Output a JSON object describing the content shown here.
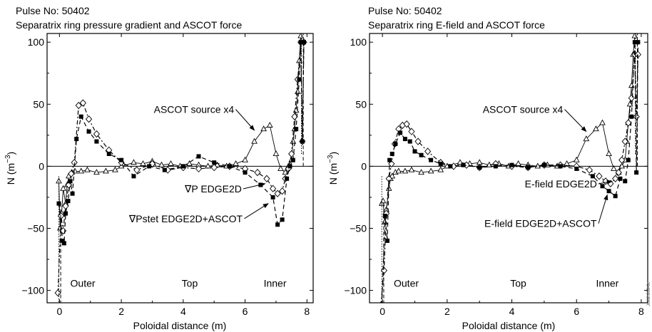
{
  "watermark": "JG02.209-6c",
  "chart_data": [
    {
      "type": "line",
      "pulse": "Pulse No: 50402",
      "title": "Separatrix ring pressure gradient and ASCOT force",
      "xlabel": "Poloidal distance (m)",
      "ylabel": "N (m",
      "ylabel_sup": "−3",
      "ylabel_close": ")",
      "xlim": [
        -0.4,
        8.2
      ],
      "ylim": [
        -110,
        107
      ],
      "xticks": [
        0,
        2,
        4,
        6,
        8
      ],
      "yticks": [
        -100,
        -50,
        0,
        50,
        100
      ],
      "ytick_labels": [
        "−100",
        "−50",
        "0",
        "50",
        "100"
      ],
      "region_labels": [
        {
          "text": "Outer",
          "x": 0.35,
          "y": -97
        },
        {
          "text": "Top",
          "x": 3.95,
          "y": -97
        },
        {
          "text": "Inner",
          "x": 6.6,
          "y": -97
        }
      ],
      "annotations": [
        {
          "text": "ASCOT source x4",
          "tx": 3.05,
          "ty": 43,
          "ax": 6.3,
          "ay": 29
        },
        {
          "text": "∇P EDGE2D",
          "tx": 4.05,
          "ty": -21,
          "ax": 6.65,
          "ay": -14
        },
        {
          "text": "∇Pstet EDGE2D+ASCOT",
          "tx": 2.25,
          "ty": -45,
          "ax": 6.75,
          "ay": -30
        }
      ],
      "series": [
        {
          "marker": "triangle",
          "dash": "",
          "color": "#000000",
          "x": [
            -0.02,
            0.02,
            0.07,
            0.12,
            0.2,
            0.25,
            0.3,
            0.4,
            0.5,
            0.7,
            0.9,
            1.2,
            1.5,
            1.8,
            2.0,
            2.4,
            2.7,
            3.0,
            3.3,
            3.6,
            3.9,
            4.2,
            4.5,
            4.8,
            5.1,
            5.4,
            5.7,
            6.0,
            6.3,
            6.6,
            6.8,
            7.0,
            7.15,
            7.3,
            7.4,
            7.5,
            7.55,
            7.6,
            7.65,
            7.7,
            7.75,
            7.8,
            7.85
          ],
          "y": [
            -12,
            -50,
            -38,
            -18,
            -30,
            -15,
            -8,
            -5,
            -4,
            -4,
            -3,
            -5,
            -4,
            -3,
            0,
            3,
            2,
            4,
            1,
            2,
            0,
            2,
            1,
            0,
            1,
            0,
            2,
            5,
            20,
            30,
            33,
            10,
            -2,
            -5,
            0,
            5,
            20,
            30,
            45,
            60,
            85,
            105,
            120
          ]
        },
        {
          "marker": "diamond",
          "dash": "6 3 2 3",
          "color": "#000000",
          "x": [
            -0.05,
            0.05,
            0.12,
            0.2,
            0.3,
            0.38,
            0.48,
            0.62,
            0.76,
            0.95,
            1.2,
            1.6,
            2.0,
            2.5,
            3.0,
            3.5,
            4.0,
            4.5,
            5.0,
            5.5,
            6.0,
            6.4,
            6.7,
            6.9,
            7.05,
            7.2,
            7.3,
            7.4,
            7.5,
            7.6,
            7.7,
            7.8,
            7.85,
            7.9
          ],
          "y": [
            -102,
            -40,
            -52,
            -32,
            -15,
            -6,
            3,
            49,
            51,
            38,
            26,
            13,
            3,
            -3,
            2,
            -3,
            -1,
            -2,
            -1,
            0,
            -2,
            -5,
            -10,
            -18,
            -22,
            -20,
            -10,
            -2,
            10,
            40,
            70,
            100,
            20,
            100
          ],
          "clip_top": true
        },
        {
          "marker": "square",
          "dash": "6 4",
          "color": "#000000",
          "x": [
            -0.02,
            0.1,
            0.15,
            0.2,
            0.28,
            0.35,
            0.42,
            0.55,
            0.7,
            0.95,
            1.2,
            1.6,
            2.0,
            2.4,
            2.9,
            3.4,
            4.0,
            4.5,
            5.0,
            5.5,
            6.0,
            6.5,
            6.9,
            7.05,
            7.2,
            7.35,
            7.45,
            7.55,
            7.65,
            7.75,
            7.8,
            7.85,
            7.9
          ],
          "y": [
            -30,
            -60,
            -62,
            -38,
            -28,
            -12,
            -22,
            22,
            40,
            28,
            20,
            10,
            5,
            -8,
            0,
            -3,
            0,
            8,
            3,
            0,
            -5,
            -15,
            -25,
            -47,
            -43,
            -10,
            0,
            5,
            30,
            70,
            100,
            20,
            100
          ],
          "clip_top": true
        }
      ]
    },
    {
      "type": "line",
      "pulse": "Pulse No: 50402",
      "title": "Separatrix ring E-field and ASCOT force",
      "xlabel": "Poloidal distance (m)",
      "ylabel": "N (m",
      "ylabel_sup": "−3",
      "ylabel_close": ")",
      "xlim": [
        -0.4,
        8.2
      ],
      "ylim": [
        -110,
        107
      ],
      "xticks": [
        0,
        2,
        4,
        6,
        8
      ],
      "yticks": [
        -100,
        -50,
        0,
        50,
        100
      ],
      "ytick_labels": [
        "−100",
        "−50",
        "0",
        "50",
        "100"
      ],
      "region_labels": [
        {
          "text": "Outer",
          "x": 0.35,
          "y": -97
        },
        {
          "text": "Top",
          "x": 3.95,
          "y": -97
        },
        {
          "text": "Inner",
          "x": 6.6,
          "y": -97
        }
      ],
      "annotations": [
        {
          "text": "ASCOT source x4",
          "tx": 3.1,
          "ty": 43,
          "ax": 6.3,
          "ay": 28
        },
        {
          "text": "E-field EDGE2D",
          "tx": 4.4,
          "ty": -17,
          "ax": 7.1,
          "ay": -12
        },
        {
          "text": "E-field EDGE2D+ASCOT",
          "tx": 3.15,
          "ty": -49,
          "ax": 6.95,
          "ay": -23
        }
      ],
      "series": [
        {
          "marker": "triangle",
          "dash": "",
          "color": "#000000",
          "x": [
            -0.02,
            0.02,
            0.07,
            0.12,
            0.2,
            0.25,
            0.3,
            0.4,
            0.5,
            0.7,
            0.9,
            1.2,
            1.5,
            1.8,
            2.0,
            2.4,
            2.7,
            3.0,
            3.3,
            3.6,
            3.9,
            4.2,
            4.5,
            4.8,
            5.1,
            5.4,
            5.7,
            6.0,
            6.3,
            6.6,
            6.8,
            7.0,
            7.15,
            7.3,
            7.4,
            7.5,
            7.55,
            7.6,
            7.65,
            7.7,
            7.75,
            7.8,
            7.85
          ],
          "y": [
            -30,
            -28,
            -45,
            -35,
            -18,
            -10,
            -8,
            -5,
            -4,
            -4,
            -3,
            -5,
            -4,
            -3,
            0,
            3,
            2,
            3,
            1,
            2,
            0,
            2,
            1,
            0,
            1,
            0,
            2,
            5,
            22,
            30,
            35,
            10,
            -2,
            -5,
            0,
            5,
            20,
            35,
            50,
            65,
            90,
            105,
            120
          ]
        },
        {
          "marker": "diamond",
          "dash": "6 3 2 3",
          "color": "#000000",
          "x": [
            -0.05,
            0.05,
            0.12,
            0.2,
            0.28,
            0.38,
            0.5,
            0.62,
            0.75,
            0.9,
            1.1,
            1.4,
            1.8,
            2.2,
            2.6,
            3.0,
            3.5,
            4.0,
            4.5,
            5.0,
            5.5,
            6.0,
            6.4,
            6.7,
            6.9,
            7.05,
            7.2,
            7.3,
            7.4,
            7.5,
            7.6,
            7.7,
            7.8,
            7.85,
            7.9
          ],
          "y": [
            -112,
            -84,
            -38,
            -10,
            2,
            18,
            30,
            33,
            34,
            28,
            20,
            12,
            3,
            0,
            1,
            -1,
            2,
            0,
            -1,
            1,
            1,
            0,
            -3,
            -8,
            -12,
            -14,
            -10,
            -5,
            5,
            20,
            35,
            55,
            90,
            40,
            90
          ],
          "clip_top": true
        },
        {
          "marker": "square",
          "dash": "6 4",
          "color": "#000000",
          "x": [
            -0.02,
            0.08,
            0.15,
            0.22,
            0.3,
            0.4,
            0.55,
            0.7,
            0.85,
            1.0,
            1.2,
            1.5,
            1.8,
            2.1,
            2.5,
            3.0,
            3.5,
            4.0,
            4.5,
            5.0,
            5.5,
            6.0,
            6.5,
            6.8,
            7.0,
            7.2,
            7.35,
            7.5,
            7.6,
            7.7,
            7.8,
            7.85,
            7.9
          ],
          "y": [
            -112,
            -40,
            -60,
            5,
            10,
            18,
            27,
            22,
            20,
            12,
            9,
            5,
            2,
            0,
            1,
            -1,
            0,
            1,
            -1,
            1,
            0,
            -2,
            -8,
            -16,
            -20,
            -24,
            -10,
            -12,
            5,
            40,
            100,
            -5,
            100
          ],
          "clip_top": true
        }
      ]
    }
  ]
}
